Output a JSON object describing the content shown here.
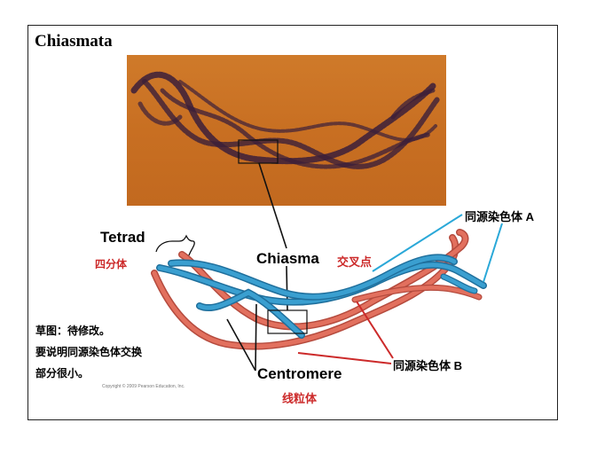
{
  "figure": {
    "title": "Chiasmata",
    "copyright": "Copyright © 2009 Pearson Education, Inc.",
    "colors": {
      "micrograph_background": "#c86f22",
      "chromatin": "#3b1f3a",
      "homolog_a": "#3a9fd0",
      "homolog_b": "#e2705e",
      "label_red": "#cc2a2a",
      "pointer_cyan": "#2aa8d8",
      "pointer_red": "#cc2a2a"
    }
  },
  "labels": {
    "tetrad": "Tetrad",
    "tetrad_cn": "四分体",
    "chiasma": "Chiasma",
    "chiasma_cn": "交叉点",
    "centromere": "Centromere",
    "centromere_cn": "线粒体",
    "homolog_a": "同源染色体 A",
    "homolog_b": "同源染色体 B"
  },
  "note": {
    "line1": "草图：待修改。",
    "line2": "要说明同源染色体交换",
    "line3": "部分很小。"
  }
}
